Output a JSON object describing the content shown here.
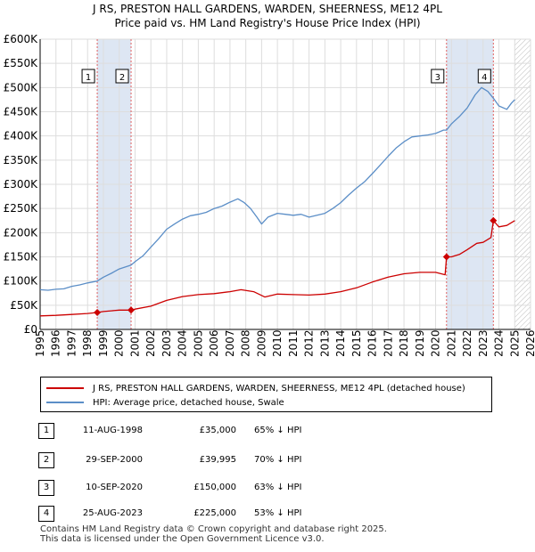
{
  "title": "J RS, PRESTON HALL GARDENS, WARDEN, SHEERNESS, ME12 4PL",
  "subtitle": "Price paid vs. HM Land Registry's House Price Index (HPI)",
  "colors": {
    "property": "#cc0000",
    "hpi": "#5b8ec7",
    "shade": "#dde6f3",
    "marker_line": "#e06060"
  },
  "chart_data": {
    "type": "line",
    "xlim": [
      1995,
      2026
    ],
    "ylim": [
      0,
      600000
    ],
    "x_ticks": [
      "1995",
      "1996",
      "1997",
      "1998",
      "1999",
      "2000",
      "2001",
      "2002",
      "2003",
      "2004",
      "2005",
      "2006",
      "2007",
      "2008",
      "2009",
      "2010",
      "2011",
      "2012",
      "2013",
      "2014",
      "2015",
      "2016",
      "2017",
      "2018",
      "2019",
      "2020",
      "2021",
      "2022",
      "2023",
      "2024",
      "2025",
      "2026"
    ],
    "y_ticks": [
      {
        "value": 0,
        "label": "£0"
      },
      {
        "value": 50000,
        "label": "£50K"
      },
      {
        "value": 100000,
        "label": "£100K"
      },
      {
        "value": 150000,
        "label": "£150K"
      },
      {
        "value": 200000,
        "label": "£200K"
      },
      {
        "value": 250000,
        "label": "£250K"
      },
      {
        "value": 300000,
        "label": "£300K"
      },
      {
        "value": 350000,
        "label": "£350K"
      },
      {
        "value": 400000,
        "label": "£400K"
      },
      {
        "value": 450000,
        "label": "£450K"
      },
      {
        "value": 500000,
        "label": "£500K"
      },
      {
        "value": 550000,
        "label": "£550K"
      },
      {
        "value": 600000,
        "label": "£600K"
      }
    ],
    "shaded_ranges": [
      [
        1998.61,
        2000.75
      ],
      [
        2020.69,
        2023.65
      ]
    ],
    "future_hatch_from": 2025.0,
    "series": [
      {
        "name": "J RS, PRESTON HALL GARDENS, WARDEN, SHEERNESS, ME12 4PL (detached house)",
        "color": "#cc0000",
        "points": [
          [
            1995.0,
            28000
          ],
          [
            1996.0,
            29000
          ],
          [
            1997.0,
            31000
          ],
          [
            1998.0,
            33000
          ],
          [
            1998.61,
            35000
          ],
          [
            1999.0,
            37000
          ],
          [
            1999.5,
            38500
          ],
          [
            2000.0,
            40000
          ],
          [
            2000.75,
            39995
          ],
          [
            2001.0,
            42000
          ],
          [
            2002.0,
            48000
          ],
          [
            2003.0,
            60000
          ],
          [
            2004.0,
            68000
          ],
          [
            2005.0,
            72000
          ],
          [
            2006.0,
            74000
          ],
          [
            2007.0,
            78000
          ],
          [
            2007.7,
            82000
          ],
          [
            2008.5,
            78000
          ],
          [
            2009.2,
            67000
          ],
          [
            2010.0,
            73000
          ],
          [
            2011.0,
            72000
          ],
          [
            2012.0,
            71000
          ],
          [
            2013.0,
            73000
          ],
          [
            2014.0,
            78000
          ],
          [
            2015.0,
            86000
          ],
          [
            2016.0,
            98000
          ],
          [
            2017.0,
            108000
          ],
          [
            2018.0,
            115000
          ],
          [
            2019.0,
            118000
          ],
          [
            2020.0,
            118000
          ],
          [
            2020.6,
            113000
          ],
          [
            2020.69,
            150000
          ],
          [
            2021.0,
            150000
          ],
          [
            2021.5,
            155000
          ],
          [
            2022.0,
            165000
          ],
          [
            2022.6,
            178000
          ],
          [
            2023.0,
            180000
          ],
          [
            2023.5,
            190000
          ],
          [
            2023.65,
            225000
          ],
          [
            2024.0,
            212000
          ],
          [
            2024.5,
            215000
          ],
          [
            2025.0,
            225000
          ]
        ]
      },
      {
        "name": "HPI: Average price, detached house, Swale",
        "color": "#5b8ec7",
        "points": [
          [
            1995.0,
            82000
          ],
          [
            1995.5,
            81000
          ],
          [
            1996.0,
            83000
          ],
          [
            1996.5,
            84000
          ],
          [
            1997.0,
            89000
          ],
          [
            1997.5,
            92000
          ],
          [
            1998.0,
            96000
          ],
          [
            1998.61,
            100000
          ],
          [
            1999.0,
            108000
          ],
          [
            1999.5,
            116000
          ],
          [
            2000.0,
            125000
          ],
          [
            2000.75,
            133000
          ],
          [
            2001.0,
            140000
          ],
          [
            2001.5,
            152000
          ],
          [
            2002.0,
            170000
          ],
          [
            2002.5,
            188000
          ],
          [
            2003.0,
            207000
          ],
          [
            2003.5,
            218000
          ],
          [
            2004.0,
            228000
          ],
          [
            2004.5,
            235000
          ],
          [
            2005.0,
            238000
          ],
          [
            2005.5,
            242000
          ],
          [
            2006.0,
            250000
          ],
          [
            2006.5,
            255000
          ],
          [
            2007.0,
            263000
          ],
          [
            2007.5,
            270000
          ],
          [
            2007.9,
            262000
          ],
          [
            2008.3,
            250000
          ],
          [
            2008.7,
            232000
          ],
          [
            2009.0,
            218000
          ],
          [
            2009.4,
            232000
          ],
          [
            2010.0,
            240000
          ],
          [
            2010.5,
            238000
          ],
          [
            2011.0,
            236000
          ],
          [
            2011.5,
            238000
          ],
          [
            2012.0,
            232000
          ],
          [
            2012.5,
            236000
          ],
          [
            2013.0,
            240000
          ],
          [
            2013.5,
            250000
          ],
          [
            2014.0,
            262000
          ],
          [
            2014.5,
            278000
          ],
          [
            2015.0,
            292000
          ],
          [
            2015.5,
            305000
          ],
          [
            2016.0,
            322000
          ],
          [
            2016.5,
            340000
          ],
          [
            2017.0,
            358000
          ],
          [
            2017.5,
            375000
          ],
          [
            2018.0,
            388000
          ],
          [
            2018.5,
            398000
          ],
          [
            2019.0,
            400000
          ],
          [
            2019.5,
            402000
          ],
          [
            2020.0,
            405000
          ],
          [
            2020.5,
            412000
          ],
          [
            2020.69,
            412000
          ],
          [
            2021.0,
            425000
          ],
          [
            2021.5,
            440000
          ],
          [
            2022.0,
            458000
          ],
          [
            2022.5,
            485000
          ],
          [
            2022.9,
            500000
          ],
          [
            2023.3,
            492000
          ],
          [
            2023.65,
            478000
          ],
          [
            2024.0,
            462000
          ],
          [
            2024.5,
            455000
          ],
          [
            2024.8,
            468000
          ],
          [
            2025.0,
            475000
          ]
        ]
      }
    ],
    "markers": [
      {
        "id": "1",
        "x": 1998.61,
        "y": 35000
      },
      {
        "id": "2",
        "x": 2000.75,
        "y": 39995
      },
      {
        "id": "3",
        "x": 2020.69,
        "y": 150000
      },
      {
        "id": "4",
        "x": 2023.65,
        "y": 225000
      }
    ]
  },
  "legend": {
    "property": "J RS, PRESTON HALL GARDENS, WARDEN, SHEERNESS, ME12 4PL (detached house)",
    "hpi": "HPI: Average price, detached house, Swale"
  },
  "transactions": [
    {
      "num": "1",
      "date": "11-AUG-1998",
      "price": "£35,000",
      "hpi": "65% ↓ HPI"
    },
    {
      "num": "2",
      "date": "29-SEP-2000",
      "price": "£39,995",
      "hpi": "70% ↓ HPI"
    },
    {
      "num": "3",
      "date": "10-SEP-2020",
      "price": "£150,000",
      "hpi": "63% ↓ HPI"
    },
    {
      "num": "4",
      "date": "25-AUG-2023",
      "price": "£225,000",
      "hpi": "53% ↓ HPI"
    }
  ],
  "footer": {
    "line1": "Contains HM Land Registry data © Crown copyright and database right 2025.",
    "line2": "This data is licensed under the Open Government Licence v3.0."
  }
}
